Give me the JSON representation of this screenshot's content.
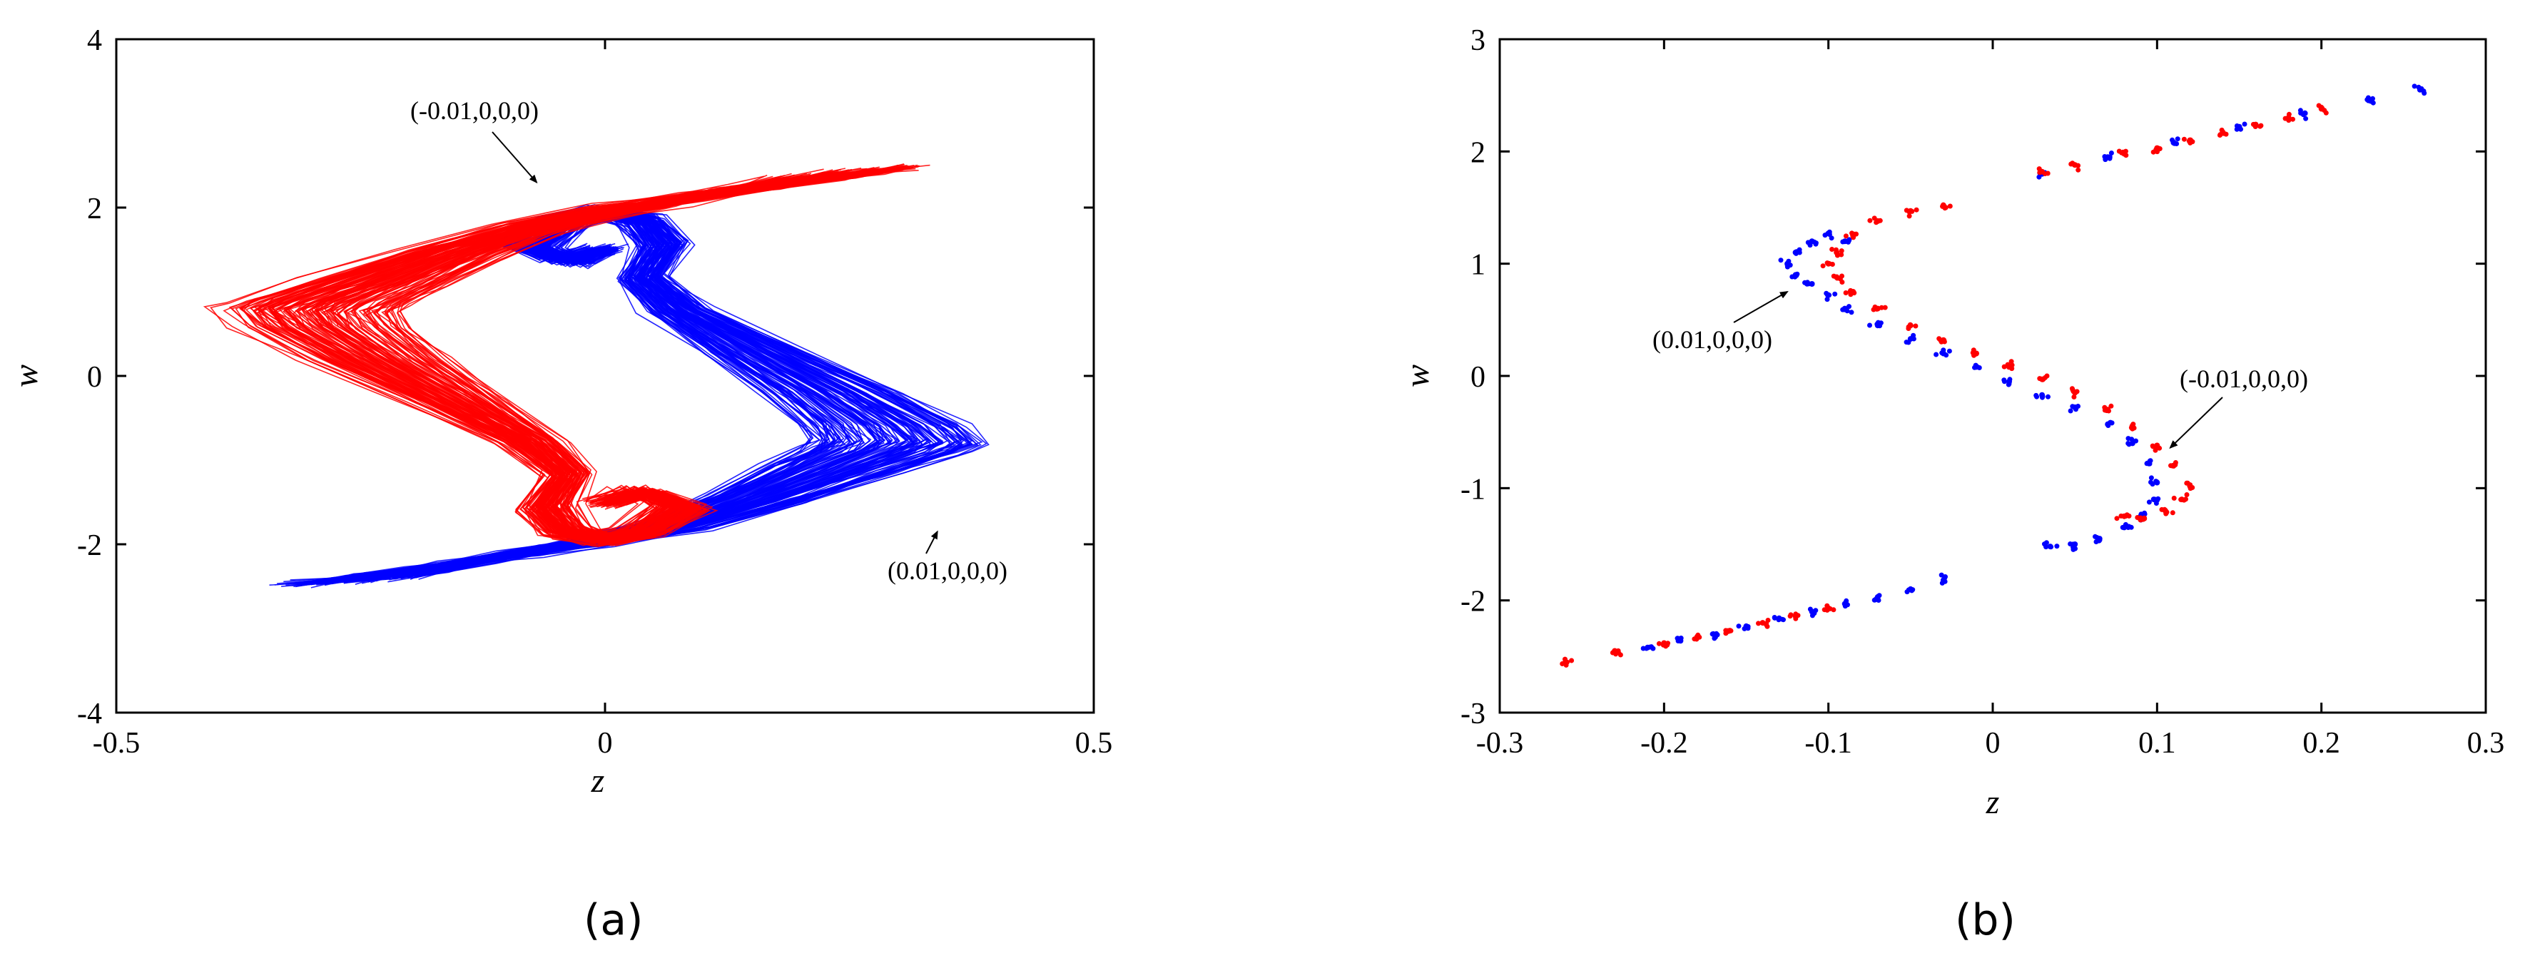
{
  "panels": [
    {
      "label": "(a)"
    },
    {
      "label": "(b)"
    }
  ],
  "chart_data": [
    {
      "type": "line",
      "title": "",
      "xlabel": "z",
      "ylabel": "w",
      "xlim": [
        -0.5,
        0.5
      ],
      "ylim": [
        -4,
        4
      ],
      "xticks": [
        -0.5,
        0,
        0.5
      ],
      "xtick_labels": [
        "-0.5",
        "0",
        "0.5"
      ],
      "yticks": [
        -4,
        -2,
        0,
        2,
        4
      ],
      "ytick_labels": [
        "-4",
        "-2",
        "0",
        "2",
        "4"
      ],
      "grid": false,
      "legend": "none",
      "series": [
        {
          "color": "#0000ff",
          "initial_condition": "(0.01,0,0,0)",
          "x": [
            -0.33,
            -0.28,
            -0.2,
            -0.1,
            0.0,
            0.1,
            0.2,
            0.3,
            0.37,
            0.39,
            0.37,
            0.3,
            0.2,
            0.1,
            0.05,
            0.08,
            0.05,
            0.0,
            -0.05,
            -0.1,
            -0.05,
            0.0
          ],
          "y": [
            -2.5,
            -2.42,
            -2.3,
            -2.15,
            -2.0,
            -1.8,
            -1.5,
            -1.15,
            -0.9,
            -0.8,
            -0.6,
            -0.2,
            0.3,
            0.8,
            1.2,
            1.6,
            1.9,
            2.0,
            1.9,
            1.6,
            1.4,
            1.55
          ]
        },
        {
          "color": "#ff0000",
          "initial_condition": "(-0.01,0,0,0)",
          "x": [
            0.33,
            0.28,
            0.2,
            0.1,
            0.0,
            -0.1,
            -0.2,
            -0.3,
            -0.37,
            -0.39,
            -0.37,
            -0.3,
            -0.2,
            -0.1,
            -0.05,
            -0.08,
            -0.05,
            0.0,
            0.05,
            0.1,
            0.05,
            0.0
          ],
          "y": [
            2.5,
            2.42,
            2.3,
            2.15,
            2.0,
            1.8,
            1.5,
            1.15,
            0.9,
            0.8,
            0.6,
            0.2,
            -0.3,
            -0.8,
            -1.2,
            -1.6,
            -1.9,
            -2.0,
            -1.9,
            -1.6,
            -1.4,
            -1.55
          ]
        }
      ],
      "annotations": [
        {
          "text": "(-0.01,0,0,0)",
          "target": [
            -0.07,
            2.3
          ]
        },
        {
          "text": "(0.01,0,0,0)",
          "target": [
            0.34,
            -1.85
          ]
        }
      ]
    },
    {
      "type": "scatter",
      "title": "",
      "xlabel": "z",
      "ylabel": "w",
      "xlim": [
        -0.3,
        0.3
      ],
      "ylim": [
        -3,
        3
      ],
      "xticks": [
        -0.3,
        -0.2,
        -0.1,
        0,
        0.1,
        0.2,
        0.3
      ],
      "xtick_labels": [
        "-0.3",
        "-0.2",
        "-0.1",
        "0",
        "0.1",
        "0.2",
        "0.3"
      ],
      "yticks": [
        -3,
        -2,
        -1,
        0,
        1,
        2,
        3
      ],
      "ytick_labels": [
        "-3",
        "-2",
        "-1",
        "0",
        "1",
        "2",
        "3"
      ],
      "grid": false,
      "legend": "none",
      "series": [
        {
          "color": "#0000ff",
          "initial_condition": "(0.01,0,0,0)",
          "points": [
            [
              -0.21,
              -2.42
            ],
            [
              -0.19,
              -2.36
            ],
            [
              -0.17,
              -2.3
            ],
            [
              -0.15,
              -2.23
            ],
            [
              -0.13,
              -2.16
            ],
            [
              -0.11,
              -2.1
            ],
            [
              -0.09,
              -2.03
            ],
            [
              -0.07,
              -1.97
            ],
            [
              -0.05,
              -1.9
            ],
            [
              -0.03,
              -1.82
            ],
            [
              0.03,
              1.8
            ],
            [
              0.07,
              1.95
            ],
            [
              0.11,
              2.08
            ],
            [
              0.15,
              2.22
            ],
            [
              0.19,
              2.34
            ],
            [
              0.23,
              2.45
            ],
            [
              0.26,
              2.55
            ],
            [
              -0.09,
              1.2
            ],
            [
              -0.1,
              1.27
            ],
            [
              -0.11,
              1.2
            ],
            [
              -0.12,
              1.1
            ],
            [
              -0.125,
              1.0
            ],
            [
              -0.12,
              0.9
            ],
            [
              -0.11,
              0.82
            ],
            [
              -0.1,
              0.72
            ],
            [
              -0.09,
              0.6
            ],
            [
              -0.07,
              0.45
            ],
            [
              -0.05,
              0.33
            ],
            [
              -0.03,
              0.2
            ],
            [
              -0.01,
              0.08
            ],
            [
              0.01,
              -0.05
            ],
            [
              0.03,
              -0.17
            ],
            [
              0.05,
              -0.28
            ],
            [
              0.07,
              -0.43
            ],
            [
              0.085,
              -0.6
            ],
            [
              0.095,
              -0.78
            ],
            [
              0.1,
              -0.95
            ],
            [
              0.098,
              -1.1
            ],
            [
              0.09,
              -1.25
            ],
            [
              0.08,
              -1.35
            ],
            [
              0.065,
              -1.45
            ],
            [
              0.05,
              -1.5
            ],
            [
              0.035,
              -1.52
            ]
          ]
        },
        {
          "color": "#ff0000",
          "initial_condition": "(-0.01,0,0,0)",
          "points": [
            [
              -0.26,
              -2.55
            ],
            [
              -0.23,
              -2.45
            ],
            [
              -0.2,
              -2.38
            ],
            [
              -0.18,
              -2.33
            ],
            [
              -0.16,
              -2.27
            ],
            [
              -0.14,
              -2.2
            ],
            [
              -0.12,
              -2.14
            ],
            [
              -0.1,
              -2.07
            ],
            [
              0.03,
              1.82
            ],
            [
              0.05,
              1.88
            ],
            [
              0.08,
              1.98
            ],
            [
              0.1,
              2.03
            ],
            [
              0.12,
              2.1
            ],
            [
              0.14,
              2.17
            ],
            [
              0.16,
              2.24
            ],
            [
              0.18,
              2.3
            ],
            [
              0.2,
              2.38
            ],
            [
              -0.03,
              1.52
            ],
            [
              -0.05,
              1.47
            ],
            [
              -0.07,
              1.38
            ],
            [
              -0.085,
              1.25
            ],
            [
              -0.095,
              1.1
            ],
            [
              -0.1,
              1.0
            ],
            [
              -0.095,
              0.88
            ],
            [
              -0.085,
              0.75
            ],
            [
              -0.07,
              0.6
            ],
            [
              -0.05,
              0.45
            ],
            [
              -0.03,
              0.32
            ],
            [
              -0.01,
              0.2
            ],
            [
              0.01,
              0.08
            ],
            [
              0.03,
              -0.03
            ],
            [
              0.05,
              -0.15
            ],
            [
              0.07,
              -0.3
            ],
            [
              0.085,
              -0.45
            ],
            [
              0.1,
              -0.62
            ],
            [
              0.11,
              -0.8
            ],
            [
              0.12,
              -0.98
            ],
            [
              0.115,
              -1.1
            ],
            [
              0.105,
              -1.2
            ],
            [
              0.09,
              -1.28
            ],
            [
              0.08,
              -1.25
            ]
          ]
        }
      ],
      "annotations": [
        {
          "text": "(0.01,0,0,0)",
          "target": [
            -0.125,
            0.75
          ]
        },
        {
          "text": "(-0.01,0,0,0)",
          "target": [
            0.108,
            -0.64
          ]
        }
      ]
    }
  ]
}
